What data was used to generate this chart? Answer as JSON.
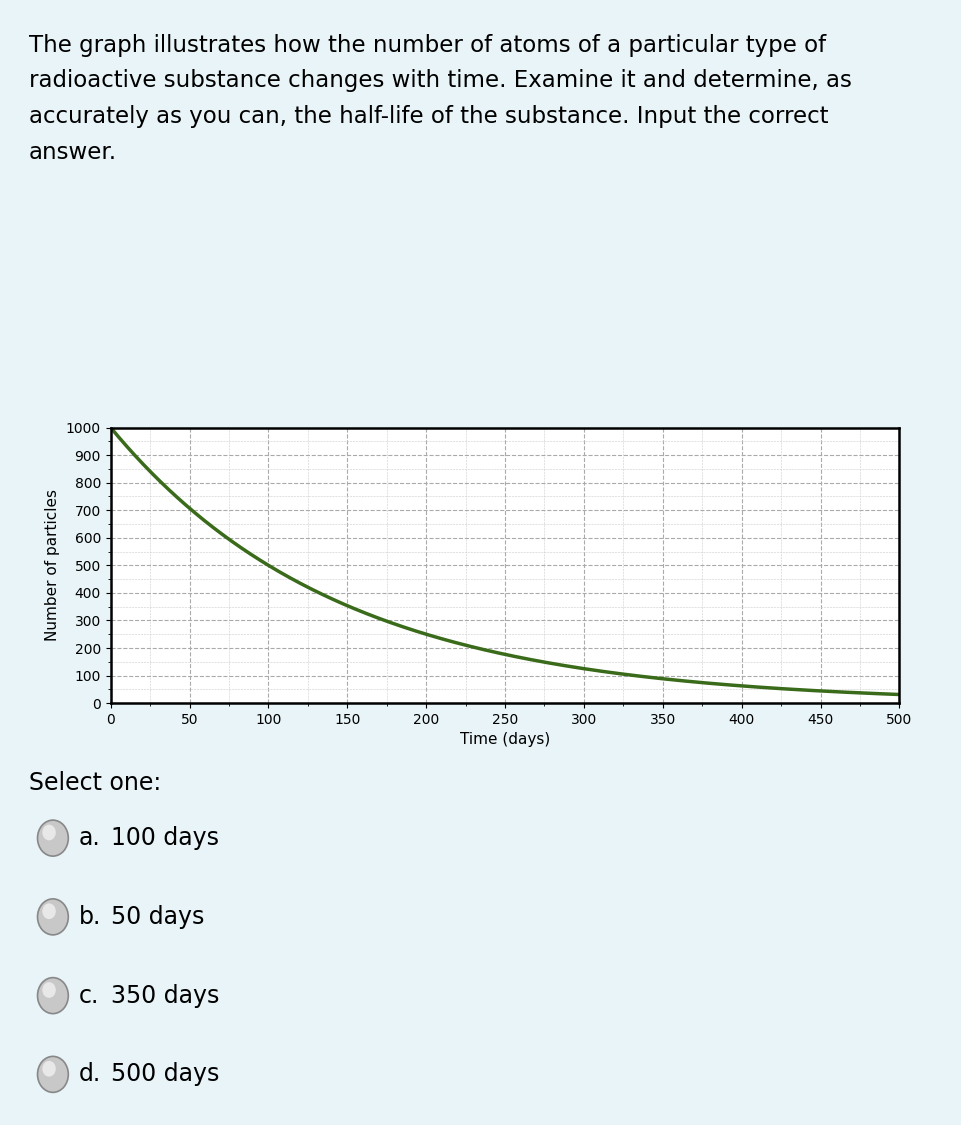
{
  "title_lines": [
    "The graph illustrates how the number of atoms of a particular type of",
    "radioactive substance changes with time. Examine it and determine, as",
    "accurately as you can, the half-life of the substance. Input the correct",
    "answer."
  ],
  "xlabel": "Time (days)",
  "ylabel": "Number of particles",
  "x_ticks": [
    0,
    50,
    100,
    150,
    200,
    250,
    300,
    350,
    400,
    450,
    500
  ],
  "y_ticks": [
    0,
    100,
    200,
    300,
    400,
    500,
    600,
    700,
    800,
    900,
    1000
  ],
  "xlim": [
    0,
    500
  ],
  "ylim": [
    0,
    1000
  ],
  "half_life": 100,
  "N0": 1000,
  "curve_color": "#3a6b1a",
  "curve_linewidth": 2.5,
  "grid_major_color": "#aaaaaa",
  "grid_minor_color": "#cccccc",
  "grid_linestyle": "--",
  "bg_color": "#e8f4f8",
  "panel_bg_color": "#ddeef5",
  "plot_bg_color": "#ffffff",
  "border_color": "#000000",
  "title_fontsize": 16.5,
  "axis_label_fontsize": 11,
  "tick_fontsize": 10,
  "select_one_text": "Select one:",
  "options": [
    {
      "label": "a.",
      "text": "100 days"
    },
    {
      "label": "b.",
      "text": "50 days"
    },
    {
      "label": "c.",
      "text": "350 days"
    },
    {
      "label": "d.",
      "text": "500 days"
    }
  ],
  "option_fontsize": 17,
  "select_fontsize": 17
}
